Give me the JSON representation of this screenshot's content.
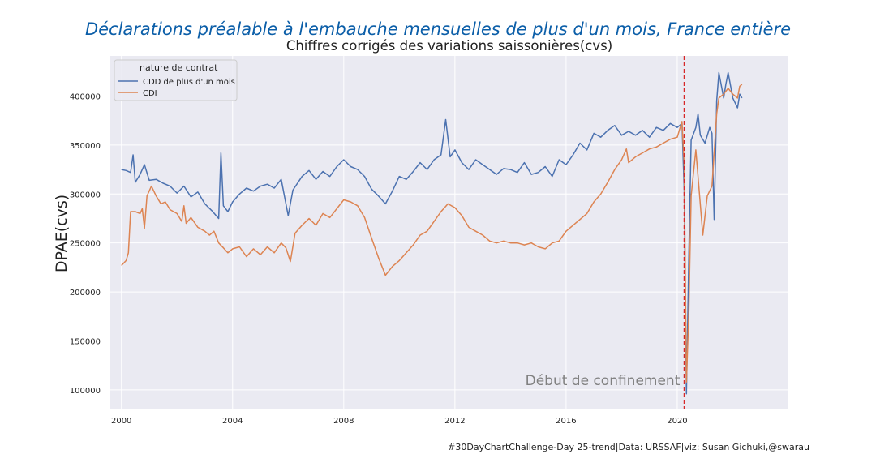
{
  "chart_data": {
    "type": "line",
    "title": "Déclarations préalable à l'embauche mensuelles de plus d'un mois, France entière",
    "subtitle": "Chiffres corrigés des variations saissonières(cvs)",
    "xlabel": "",
    "ylabel": "DPAE(cvs)",
    "x_ticks": [
      "2000",
      "2004",
      "2008",
      "2012",
      "2016",
      "2020"
    ],
    "y_ticks": [
      "100000",
      "150000",
      "200000",
      "250000",
      "300000",
      "350000",
      "400000"
    ],
    "xlim": [
      1999.6,
      2024.0
    ],
    "ylim": [
      80000,
      441000
    ],
    "grid": true,
    "legend": {
      "title": "nature de contrat",
      "position": "top-left",
      "entries": [
        "CDD de plus d'un mois",
        "CDI"
      ]
    },
    "annotations": [
      {
        "type": "vline",
        "x": 2020.25,
        "color": "#d62728",
        "style": "dashed"
      },
      {
        "text": "Début de confinement",
        "x": 2020.1,
        "y": 105000,
        "color": "#808080"
      }
    ],
    "series": [
      {
        "name": "CDD de plus d'un mois",
        "color": "#4c72b0",
        "points": [
          [
            2000.0,
            325000
          ],
          [
            2000.17,
            324000
          ],
          [
            2000.33,
            322000
          ],
          [
            2000.42,
            340000
          ],
          [
            2000.5,
            312000
          ],
          [
            2000.67,
            320000
          ],
          [
            2000.83,
            330000
          ],
          [
            2001.0,
            314000
          ],
          [
            2001.25,
            315000
          ],
          [
            2001.5,
            311000
          ],
          [
            2001.75,
            308000
          ],
          [
            2002.0,
            301000
          ],
          [
            2002.25,
            308000
          ],
          [
            2002.5,
            297000
          ],
          [
            2002.75,
            302000
          ],
          [
            2003.0,
            290000
          ],
          [
            2003.25,
            283000
          ],
          [
            2003.5,
            275000
          ],
          [
            2003.58,
            342000
          ],
          [
            2003.67,
            288000
          ],
          [
            2003.83,
            282000
          ],
          [
            2004.0,
            292000
          ],
          [
            2004.25,
            300000
          ],
          [
            2004.5,
            306000
          ],
          [
            2004.75,
            303000
          ],
          [
            2005.0,
            308000
          ],
          [
            2005.25,
            310000
          ],
          [
            2005.5,
            306000
          ],
          [
            2005.75,
            315000
          ],
          [
            2005.92,
            290000
          ],
          [
            2006.0,
            278000
          ],
          [
            2006.17,
            304000
          ],
          [
            2006.5,
            318000
          ],
          [
            2006.75,
            324000
          ],
          [
            2007.0,
            315000
          ],
          [
            2007.25,
            323000
          ],
          [
            2007.5,
            318000
          ],
          [
            2007.75,
            328000
          ],
          [
            2008.0,
            335000
          ],
          [
            2008.25,
            328000
          ],
          [
            2008.5,
            325000
          ],
          [
            2008.75,
            318000
          ],
          [
            2009.0,
            305000
          ],
          [
            2009.25,
            298000
          ],
          [
            2009.5,
            290000
          ],
          [
            2009.75,
            303000
          ],
          [
            2010.0,
            318000
          ],
          [
            2010.25,
            315000
          ],
          [
            2010.5,
            323000
          ],
          [
            2010.75,
            332000
          ],
          [
            2011.0,
            325000
          ],
          [
            2011.25,
            335000
          ],
          [
            2011.5,
            340000
          ],
          [
            2011.67,
            376000
          ],
          [
            2011.83,
            338000
          ],
          [
            2012.0,
            345000
          ],
          [
            2012.25,
            332000
          ],
          [
            2012.5,
            325000
          ],
          [
            2012.75,
            335000
          ],
          [
            2013.0,
            330000
          ],
          [
            2013.25,
            325000
          ],
          [
            2013.5,
            320000
          ],
          [
            2013.75,
            326000
          ],
          [
            2014.0,
            325000
          ],
          [
            2014.25,
            322000
          ],
          [
            2014.5,
            332000
          ],
          [
            2014.75,
            320000
          ],
          [
            2015.0,
            322000
          ],
          [
            2015.25,
            328000
          ],
          [
            2015.5,
            318000
          ],
          [
            2015.75,
            335000
          ],
          [
            2016.0,
            330000
          ],
          [
            2016.25,
            340000
          ],
          [
            2016.5,
            352000
          ],
          [
            2016.75,
            345000
          ],
          [
            2017.0,
            362000
          ],
          [
            2017.25,
            358000
          ],
          [
            2017.5,
            365000
          ],
          [
            2017.75,
            370000
          ],
          [
            2018.0,
            360000
          ],
          [
            2018.25,
            364000
          ],
          [
            2018.5,
            360000
          ],
          [
            2018.75,
            365000
          ],
          [
            2019.0,
            358000
          ],
          [
            2019.25,
            368000
          ],
          [
            2019.5,
            365000
          ],
          [
            2019.75,
            372000
          ],
          [
            2020.0,
            368000
          ],
          [
            2020.17,
            372000
          ],
          [
            2020.25,
            305000
          ],
          [
            2020.33,
            96000
          ],
          [
            2020.42,
            240000
          ],
          [
            2020.5,
            355000
          ],
          [
            2020.67,
            368000
          ],
          [
            2020.75,
            382000
          ],
          [
            2020.83,
            360000
          ],
          [
            2021.0,
            352000
          ],
          [
            2021.17,
            368000
          ],
          [
            2021.25,
            362000
          ],
          [
            2021.33,
            274000
          ],
          [
            2021.42,
            395000
          ],
          [
            2021.5,
            424000
          ],
          [
            2021.67,
            398000
          ],
          [
            2021.75,
            412000
          ],
          [
            2021.83,
            424000
          ],
          [
            2022.0,
            398000
          ],
          [
            2022.17,
            388000
          ],
          [
            2022.25,
            402000
          ],
          [
            2022.33,
            398000
          ]
        ]
      },
      {
        "name": "CDI",
        "color": "#dd8452",
        "points": [
          [
            2000.0,
            227000
          ],
          [
            2000.17,
            232000
          ],
          [
            2000.25,
            240000
          ],
          [
            2000.33,
            282000
          ],
          [
            2000.5,
            282000
          ],
          [
            2000.67,
            280000
          ],
          [
            2000.75,
            285000
          ],
          [
            2000.83,
            265000
          ],
          [
            2000.92,
            298000
          ],
          [
            2001.08,
            308000
          ],
          [
            2001.25,
            298000
          ],
          [
            2001.42,
            290000
          ],
          [
            2001.58,
            292000
          ],
          [
            2001.75,
            284000
          ],
          [
            2002.0,
            280000
          ],
          [
            2002.17,
            272000
          ],
          [
            2002.25,
            288000
          ],
          [
            2002.33,
            270000
          ],
          [
            2002.5,
            276000
          ],
          [
            2002.75,
            266000
          ],
          [
            2003.0,
            262000
          ],
          [
            2003.17,
            258000
          ],
          [
            2003.33,
            262000
          ],
          [
            2003.5,
            250000
          ],
          [
            2003.67,
            245000
          ],
          [
            2003.83,
            240000
          ],
          [
            2004.0,
            244000
          ],
          [
            2004.25,
            246000
          ],
          [
            2004.5,
            236000
          ],
          [
            2004.75,
            244000
          ],
          [
            2005.0,
            238000
          ],
          [
            2005.25,
            246000
          ],
          [
            2005.5,
            240000
          ],
          [
            2005.75,
            250000
          ],
          [
            2005.92,
            245000
          ],
          [
            2006.08,
            231000
          ],
          [
            2006.25,
            260000
          ],
          [
            2006.5,
            268000
          ],
          [
            2006.75,
            275000
          ],
          [
            2007.0,
            268000
          ],
          [
            2007.25,
            280000
          ],
          [
            2007.5,
            276000
          ],
          [
            2007.75,
            285000
          ],
          [
            2008.0,
            294000
          ],
          [
            2008.25,
            292000
          ],
          [
            2008.5,
            288000
          ],
          [
            2008.75,
            276000
          ],
          [
            2009.0,
            255000
          ],
          [
            2009.25,
            235000
          ],
          [
            2009.5,
            217000
          ],
          [
            2009.75,
            226000
          ],
          [
            2010.0,
            232000
          ],
          [
            2010.25,
            240000
          ],
          [
            2010.5,
            248000
          ],
          [
            2010.75,
            258000
          ],
          [
            2011.0,
            262000
          ],
          [
            2011.25,
            272000
          ],
          [
            2011.5,
            282000
          ],
          [
            2011.75,
            290000
          ],
          [
            2012.0,
            286000
          ],
          [
            2012.25,
            278000
          ],
          [
            2012.5,
            266000
          ],
          [
            2012.75,
            262000
          ],
          [
            2013.0,
            258000
          ],
          [
            2013.25,
            252000
          ],
          [
            2013.5,
            250000
          ],
          [
            2013.75,
            252000
          ],
          [
            2014.0,
            250000
          ],
          [
            2014.25,
            250000
          ],
          [
            2014.5,
            248000
          ],
          [
            2014.75,
            250000
          ],
          [
            2015.0,
            246000
          ],
          [
            2015.25,
            244000
          ],
          [
            2015.5,
            250000
          ],
          [
            2015.75,
            252000
          ],
          [
            2016.0,
            262000
          ],
          [
            2016.25,
            268000
          ],
          [
            2016.5,
            274000
          ],
          [
            2016.75,
            280000
          ],
          [
            2017.0,
            292000
          ],
          [
            2017.25,
            300000
          ],
          [
            2017.5,
            312000
          ],
          [
            2017.75,
            325000
          ],
          [
            2018.0,
            335000
          ],
          [
            2018.17,
            346000
          ],
          [
            2018.25,
            332000
          ],
          [
            2018.5,
            338000
          ],
          [
            2018.75,
            342000
          ],
          [
            2019.0,
            346000
          ],
          [
            2019.25,
            348000
          ],
          [
            2019.5,
            352000
          ],
          [
            2019.75,
            356000
          ],
          [
            2020.0,
            358000
          ],
          [
            2020.17,
            374000
          ],
          [
            2020.25,
            330000
          ],
          [
            2020.33,
            108000
          ],
          [
            2020.42,
            180000
          ],
          [
            2020.5,
            298000
          ],
          [
            2020.67,
            345000
          ],
          [
            2020.75,
            318000
          ],
          [
            2020.92,
            258000
          ],
          [
            2021.08,
            298000
          ],
          [
            2021.25,
            308000
          ],
          [
            2021.42,
            382000
          ],
          [
            2021.5,
            398000
          ],
          [
            2021.67,
            402000
          ],
          [
            2021.83,
            408000
          ],
          [
            2022.0,
            402000
          ],
          [
            2022.17,
            398000
          ],
          [
            2022.25,
            410000
          ],
          [
            2022.33,
            412000
          ]
        ]
      }
    ],
    "caption": "#30DayChartChallenge-Day 25-trend|Data: URSSAF|viz: Susan Gichuki,@swarau"
  }
}
